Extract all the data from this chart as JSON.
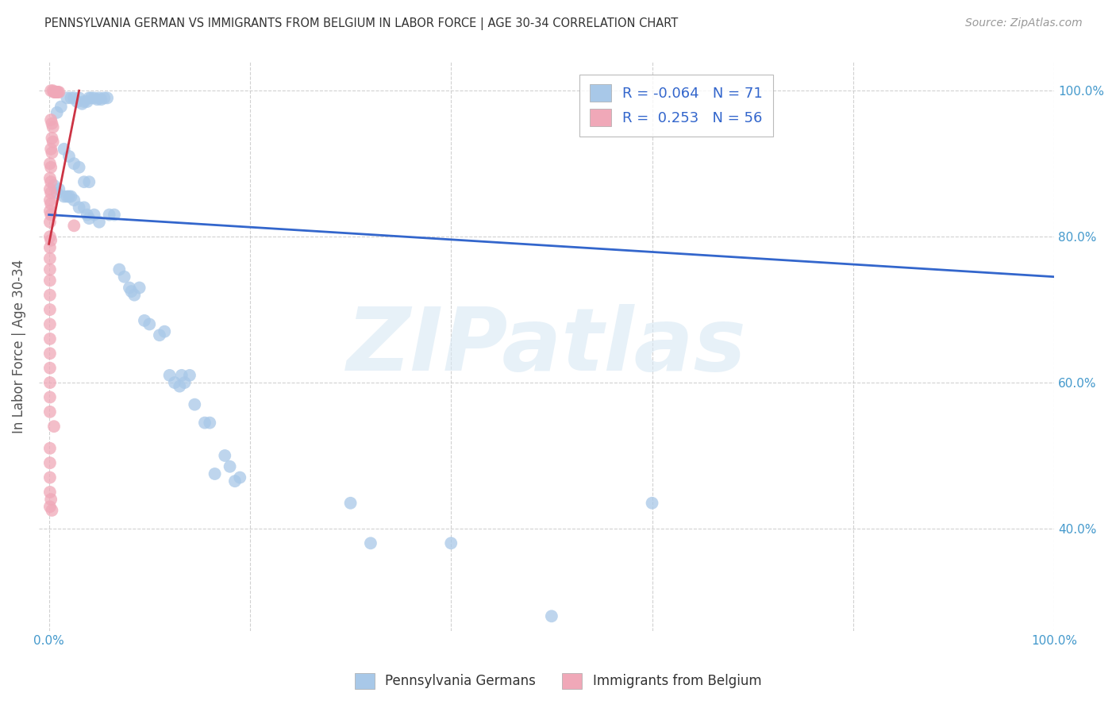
{
  "title": "PENNSYLVANIA GERMAN VS IMMIGRANTS FROM BELGIUM IN LABOR FORCE | AGE 30-34 CORRELATION CHART",
  "source": "Source: ZipAtlas.com",
  "ylabel": "In Labor Force | Age 30-34",
  "legend_blue_r": "-0.064",
  "legend_blue_n": "71",
  "legend_pink_r": "0.253",
  "legend_pink_n": "56",
  "legend_blue_label": "Pennsylvania Germans",
  "legend_pink_label": "Immigrants from Belgium",
  "blue_color": "#a8c8e8",
  "pink_color": "#f0a8b8",
  "blue_line_color": "#3366cc",
  "pink_line_color": "#cc3344",
  "grid_color": "#cccccc",
  "watermark": "ZIPatlas",
  "blue_scatter": [
    [
      0.008,
      0.97
    ],
    [
      0.012,
      0.978
    ],
    [
      0.018,
      0.99
    ],
    [
      0.022,
      0.99
    ],
    [
      0.025,
      0.99
    ],
    [
      0.028,
      0.985
    ],
    [
      0.03,
      0.99
    ],
    [
      0.033,
      0.982
    ],
    [
      0.035,
      0.985
    ],
    [
      0.038,
      0.985
    ],
    [
      0.04,
      0.99
    ],
    [
      0.042,
      0.99
    ],
    [
      0.045,
      0.99
    ],
    [
      0.048,
      0.988
    ],
    [
      0.05,
      0.99
    ],
    [
      0.052,
      0.988
    ],
    [
      0.055,
      0.99
    ],
    [
      0.058,
      0.99
    ],
    [
      0.015,
      0.92
    ],
    [
      0.02,
      0.91
    ],
    [
      0.025,
      0.9
    ],
    [
      0.03,
      0.895
    ],
    [
      0.035,
      0.875
    ],
    [
      0.04,
      0.875
    ],
    [
      0.005,
      0.87
    ],
    [
      0.008,
      0.86
    ],
    [
      0.01,
      0.865
    ],
    [
      0.015,
      0.855
    ],
    [
      0.018,
      0.855
    ],
    [
      0.02,
      0.855
    ],
    [
      0.022,
      0.855
    ],
    [
      0.025,
      0.85
    ],
    [
      0.03,
      0.84
    ],
    [
      0.035,
      0.84
    ],
    [
      0.038,
      0.83
    ],
    [
      0.04,
      0.825
    ],
    [
      0.045,
      0.83
    ],
    [
      0.05,
      0.82
    ],
    [
      0.06,
      0.83
    ],
    [
      0.065,
      0.83
    ],
    [
      0.07,
      0.755
    ],
    [
      0.075,
      0.745
    ],
    [
      0.08,
      0.73
    ],
    [
      0.082,
      0.725
    ],
    [
      0.085,
      0.72
    ],
    [
      0.09,
      0.73
    ],
    [
      0.095,
      0.685
    ],
    [
      0.1,
      0.68
    ],
    [
      0.11,
      0.665
    ],
    [
      0.115,
      0.67
    ],
    [
      0.12,
      0.61
    ],
    [
      0.125,
      0.6
    ],
    [
      0.13,
      0.595
    ],
    [
      0.132,
      0.61
    ],
    [
      0.135,
      0.6
    ],
    [
      0.14,
      0.61
    ],
    [
      0.145,
      0.57
    ],
    [
      0.155,
      0.545
    ],
    [
      0.16,
      0.545
    ],
    [
      0.165,
      0.475
    ],
    [
      0.175,
      0.5
    ],
    [
      0.18,
      0.485
    ],
    [
      0.185,
      0.465
    ],
    [
      0.19,
      0.47
    ],
    [
      0.3,
      0.435
    ],
    [
      0.32,
      0.38
    ],
    [
      0.4,
      0.38
    ],
    [
      0.6,
      0.435
    ],
    [
      0.5,
      0.28
    ]
  ],
  "pink_scatter": [
    [
      0.002,
      1.0
    ],
    [
      0.004,
      1.0
    ],
    [
      0.005,
      0.998
    ],
    [
      0.006,
      0.998
    ],
    [
      0.007,
      0.998
    ],
    [
      0.008,
      0.998
    ],
    [
      0.009,
      0.998
    ],
    [
      0.01,
      0.998
    ],
    [
      0.002,
      0.96
    ],
    [
      0.003,
      0.955
    ],
    [
      0.004,
      0.95
    ],
    [
      0.003,
      0.935
    ],
    [
      0.004,
      0.93
    ],
    [
      0.002,
      0.92
    ],
    [
      0.003,
      0.915
    ],
    [
      0.001,
      0.9
    ],
    [
      0.002,
      0.895
    ],
    [
      0.001,
      0.88
    ],
    [
      0.002,
      0.875
    ],
    [
      0.001,
      0.865
    ],
    [
      0.002,
      0.86
    ],
    [
      0.001,
      0.85
    ],
    [
      0.002,
      0.845
    ],
    [
      0.001,
      0.835
    ],
    [
      0.002,
      0.83
    ],
    [
      0.001,
      0.82
    ],
    [
      0.025,
      0.815
    ],
    [
      0.001,
      0.8
    ],
    [
      0.002,
      0.795
    ],
    [
      0.001,
      0.785
    ],
    [
      0.001,
      0.77
    ],
    [
      0.001,
      0.755
    ],
    [
      0.001,
      0.74
    ],
    [
      0.001,
      0.72
    ],
    [
      0.001,
      0.7
    ],
    [
      0.001,
      0.68
    ],
    [
      0.001,
      0.66
    ],
    [
      0.001,
      0.64
    ],
    [
      0.001,
      0.62
    ],
    [
      0.001,
      0.6
    ],
    [
      0.001,
      0.58
    ],
    [
      0.001,
      0.56
    ],
    [
      0.005,
      0.54
    ],
    [
      0.001,
      0.51
    ],
    [
      0.001,
      0.49
    ],
    [
      0.001,
      0.47
    ],
    [
      0.001,
      0.45
    ],
    [
      0.002,
      0.44
    ],
    [
      0.001,
      0.43
    ],
    [
      0.003,
      0.425
    ]
  ],
  "blue_line_x": [
    0.0,
    1.0
  ],
  "blue_line_y": [
    0.83,
    0.745
  ],
  "pink_line_x": [
    0.0,
    0.03
  ],
  "pink_line_y": [
    0.79,
    1.0
  ],
  "xlim": [
    -0.01,
    1.0
  ],
  "ylim": [
    0.26,
    1.04
  ],
  "bg_color": "#ffffff",
  "title_color": "#333333",
  "axis_label_color": "#555555",
  "tick_color": "#4499cc",
  "watermark_color": "#d8e8f4",
  "watermark_alpha": 0.6,
  "right_yticks": [
    0.4,
    0.6,
    0.8,
    1.0
  ],
  "right_yticklabels": [
    "40.0%",
    "60.0%",
    "80.0%",
    "100.0%"
  ],
  "xtick_ends": [
    0.0,
    1.0
  ],
  "xtick_end_labels": [
    "0.0%",
    "100.0%"
  ]
}
